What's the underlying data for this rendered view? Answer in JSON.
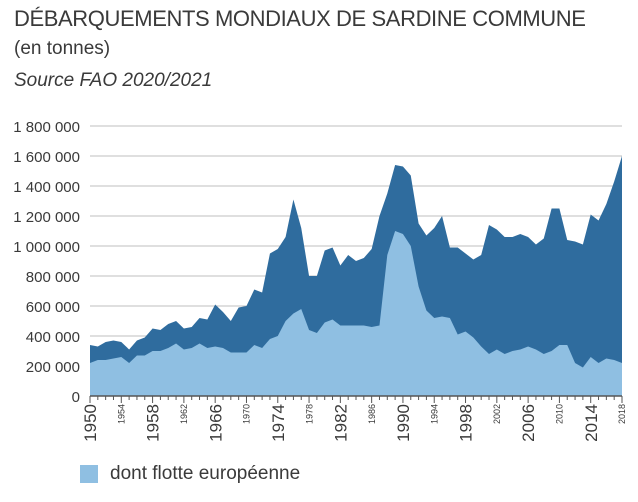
{
  "chart_data": {
    "type": "area",
    "title": "DÉBARQUEMENTS MONDIAUX DE SARDINE COMMUNE",
    "subtitle": "(en tonnes)",
    "source": "Source FAO 2020/2021",
    "y_ticks": [
      "1 800 000",
      "1 600 000",
      "1 400 000",
      "1 200 000",
      "1 000 000",
      "800 000",
      "600 000",
      "400 000",
      "200 000",
      "0"
    ],
    "y_tick_values": [
      1800000,
      1600000,
      1400000,
      1200000,
      1000000,
      800000,
      600000,
      400000,
      200000,
      0
    ],
    "ylim": [
      0,
      1800000
    ],
    "xlim": [
      1950,
      2018
    ],
    "x_ticks_major": [
      "1950",
      "1958",
      "1966",
      "1974",
      "1982",
      "1990",
      "1998",
      "2006",
      "2014"
    ],
    "x_ticks_minor": [
      "1954",
      "1962",
      "1970",
      "1978",
      "1986",
      "1994",
      "2002",
      "2010",
      "2018"
    ],
    "grid": true,
    "legend_position": "bottom-left",
    "colors": {
      "total": "#2f6c9e",
      "european": "#8fbfe2",
      "grid": "#bfbfbf"
    },
    "x": [
      1950,
      1951,
      1952,
      1953,
      1954,
      1955,
      1956,
      1957,
      1958,
      1959,
      1960,
      1961,
      1962,
      1963,
      1964,
      1965,
      1966,
      1967,
      1968,
      1969,
      1970,
      1971,
      1972,
      1973,
      1974,
      1975,
      1976,
      1977,
      1978,
      1979,
      1980,
      1981,
      1982,
      1983,
      1984,
      1985,
      1986,
      1987,
      1988,
      1989,
      1990,
      1991,
      1992,
      1993,
      1994,
      1995,
      1996,
      1997,
      1998,
      1999,
      2000,
      2001,
      2002,
      2003,
      2004,
      2005,
      2006,
      2007,
      2008,
      2009,
      2010,
      2011,
      2012,
      2013,
      2014,
      2015,
      2016,
      2017,
      2018
    ],
    "series": [
      {
        "legend": "",
        "values": [
          340000,
          330000,
          360000,
          370000,
          360000,
          310000,
          370000,
          390000,
          450000,
          440000,
          480000,
          500000,
          450000,
          460000,
          520000,
          510000,
          610000,
          560000,
          500000,
          590000,
          600000,
          710000,
          690000,
          950000,
          980000,
          1060000,
          1310000,
          1120000,
          800000,
          800000,
          970000,
          990000,
          870000,
          940000,
          900000,
          920000,
          980000,
          1200000,
          1350000,
          1540000,
          1530000,
          1470000,
          1150000,
          1070000,
          1120000,
          1200000,
          990000,
          990000,
          950000,
          910000,
          940000,
          1140000,
          1110000,
          1060000,
          1060000,
          1080000,
          1060000,
          1010000,
          1050000,
          1250000,
          1250000,
          1040000,
          1030000,
          1010000,
          1210000,
          1170000,
          1280000,
          1430000,
          1600000
        ]
      },
      {
        "legend": "dont flotte européenne",
        "values": [
          220000,
          240000,
          240000,
          250000,
          260000,
          220000,
          270000,
          270000,
          300000,
          300000,
          320000,
          350000,
          310000,
          320000,
          350000,
          320000,
          330000,
          320000,
          290000,
          290000,
          290000,
          340000,
          320000,
          380000,
          400000,
          500000,
          550000,
          580000,
          440000,
          420000,
          490000,
          510000,
          470000,
          470000,
          470000,
          470000,
          460000,
          470000,
          940000,
          1100000,
          1080000,
          1000000,
          730000,
          570000,
          520000,
          530000,
          520000,
          410000,
          430000,
          390000,
          330000,
          280000,
          310000,
          280000,
          300000,
          310000,
          330000,
          310000,
          280000,
          300000,
          340000,
          340000,
          220000,
          190000,
          260000,
          220000,
          250000,
          240000,
          220000
        ]
      }
    ]
  }
}
